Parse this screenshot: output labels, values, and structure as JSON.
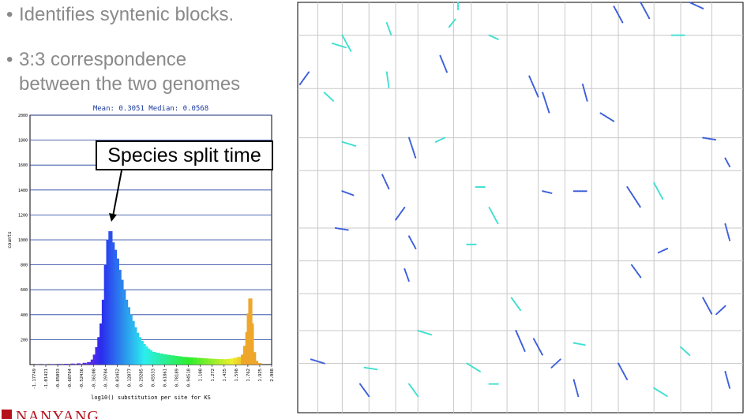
{
  "bullets": [
    {
      "text": "Identifies syntenic blocks."
    },
    {
      "text": "3:3 correspondence\nbetween the two genomes"
    }
  ],
  "callout": {
    "text": "Species split time"
  },
  "logo": {
    "text": "NANYANG"
  },
  "chart_data": [
    {
      "type": "bar",
      "title": "Mean: 0.3051 Median: 0.0568",
      "xlabel": "log10() substitution per site for KS",
      "ylabel": "counts",
      "ylim": [
        0,
        2000
      ],
      "y_ticks": [
        200,
        400,
        600,
        800,
        1000,
        1200,
        1400,
        1600,
        1800,
        2000
      ],
      "x_tick_labels": [
        "-1.17749",
        "-1.01421",
        "-0.85093",
        "-0.68764",
        "-0.52436",
        "-0.36108",
        "-0.19784",
        "-0.03452",
        "0.12877",
        "0.29205",
        "0.45533",
        "0.61861",
        "0.78189",
        "0.94518",
        "1.108",
        "1.272",
        "1.435",
        "1.598",
        "1.762",
        "1.925",
        "2.088"
      ],
      "xlim": [
        -1.17749,
        2.088
      ],
      "bins": [
        {
          "x": -1.08,
          "count": 2
        },
        {
          "x": -0.97,
          "count": 3
        },
        {
          "x": -0.87,
          "count": 4
        },
        {
          "x": -0.78,
          "count": 5
        },
        {
          "x": -0.69,
          "count": 6
        },
        {
          "x": -0.6,
          "count": 8
        },
        {
          "x": -0.52,
          "count": 10
        },
        {
          "x": -0.44,
          "count": 14
        },
        {
          "x": -0.38,
          "count": 20
        },
        {
          "x": -0.33,
          "count": 40
        },
        {
          "x": -0.3,
          "count": 80
        },
        {
          "x": -0.27,
          "count": 140
        },
        {
          "x": -0.24,
          "count": 220
        },
        {
          "x": -0.21,
          "count": 330
        },
        {
          "x": -0.18,
          "count": 520
        },
        {
          "x": -0.15,
          "count": 800
        },
        {
          "x": -0.12,
          "count": 1000
        },
        {
          "x": -0.09,
          "count": 1070
        },
        {
          "x": -0.06,
          "count": 980
        },
        {
          "x": -0.03,
          "count": 920
        },
        {
          "x": 0.0,
          "count": 850
        },
        {
          "x": 0.03,
          "count": 760
        },
        {
          "x": 0.06,
          "count": 680
        },
        {
          "x": 0.09,
          "count": 600
        },
        {
          "x": 0.12,
          "count": 520
        },
        {
          "x": 0.15,
          "count": 460
        },
        {
          "x": 0.18,
          "count": 400
        },
        {
          "x": 0.21,
          "count": 350
        },
        {
          "x": 0.24,
          "count": 300
        },
        {
          "x": 0.27,
          "count": 255
        },
        {
          "x": 0.3,
          "count": 220
        },
        {
          "x": 0.33,
          "count": 190
        },
        {
          "x": 0.36,
          "count": 165
        },
        {
          "x": 0.39,
          "count": 145
        },
        {
          "x": 0.42,
          "count": 128
        },
        {
          "x": 0.45,
          "count": 115
        },
        {
          "x": 0.5,
          "count": 102
        },
        {
          "x": 0.55,
          "count": 95
        },
        {
          "x": 0.6,
          "count": 88
        },
        {
          "x": 0.65,
          "count": 82
        },
        {
          "x": 0.7,
          "count": 78
        },
        {
          "x": 0.75,
          "count": 74
        },
        {
          "x": 0.8,
          "count": 70
        },
        {
          "x": 0.85,
          "count": 66
        },
        {
          "x": 0.9,
          "count": 62
        },
        {
          "x": 0.95,
          "count": 60
        },
        {
          "x": 1.0,
          "count": 58
        },
        {
          "x": 1.05,
          "count": 56
        },
        {
          "x": 1.1,
          "count": 54
        },
        {
          "x": 1.15,
          "count": 52
        },
        {
          "x": 1.2,
          "count": 50
        },
        {
          "x": 1.25,
          "count": 48
        },
        {
          "x": 1.3,
          "count": 46
        },
        {
          "x": 1.35,
          "count": 45
        },
        {
          "x": 1.4,
          "count": 44
        },
        {
          "x": 1.45,
          "count": 43
        },
        {
          "x": 1.5,
          "count": 45
        },
        {
          "x": 1.55,
          "count": 48
        },
        {
          "x": 1.6,
          "count": 55
        },
        {
          "x": 1.65,
          "count": 62
        },
        {
          "x": 1.7,
          "count": 80
        },
        {
          "x": 1.73,
          "count": 150
        },
        {
          "x": 1.76,
          "count": 260
        },
        {
          "x": 1.78,
          "count": 410
        },
        {
          "x": 1.8,
          "count": 530
        },
        {
          "x": 1.82,
          "count": 330
        },
        {
          "x": 1.85,
          "count": 100
        },
        {
          "x": 1.88,
          "count": 30
        },
        {
          "x": 1.93,
          "count": 12
        }
      ]
    },
    {
      "type": "scatter",
      "title": "",
      "grid": true,
      "segments": [
        {
          "x": 0.078,
          "y": 0.1,
          "dx": 0.03,
          "dy": 0.01,
          "color": "#40e0d0"
        },
        {
          "x": 0.1,
          "y": 0.08,
          "dx": 0.02,
          "dy": 0.04,
          "color": "#40e0d0"
        },
        {
          "x": 0.005,
          "y": 0.2,
          "dx": 0.02,
          "dy": -0.03,
          "color": "#3d5fd9"
        },
        {
          "x": 0.06,
          "y": 0.22,
          "dx": 0.02,
          "dy": 0.02,
          "color": "#40e0d0"
        },
        {
          "x": 0.2,
          "y": 0.05,
          "dx": 0.01,
          "dy": 0.03,
          "color": "#40e0d0"
        },
        {
          "x": 0.34,
          "y": 0.06,
          "dx": 0.015,
          "dy": -0.02,
          "color": "#40e0d0"
        },
        {
          "x": 0.36,
          "y": 0.0,
          "dx": 0.0,
          "dy": 0.02,
          "color": "#40e0d0"
        },
        {
          "x": 0.32,
          "y": 0.13,
          "dx": 0.015,
          "dy": 0.04,
          "color": "#3d5fd9"
        },
        {
          "x": 0.2,
          "y": 0.17,
          "dx": 0.005,
          "dy": 0.04,
          "color": "#40e0d0"
        },
        {
          "x": 0.43,
          "y": 0.08,
          "dx": 0.02,
          "dy": 0.01,
          "color": "#40e0d0"
        },
        {
          "x": 0.71,
          "y": 0.01,
          "dx": 0.02,
          "dy": 0.04,
          "color": "#3d5fd9"
        },
        {
          "x": 0.77,
          "y": 0.0,
          "dx": 0.02,
          "dy": 0.04,
          "color": "#3d5fd9"
        },
        {
          "x": 0.88,
          "y": 0.0,
          "dx": 0.03,
          "dy": 0.015,
          "color": "#3d5fd9"
        },
        {
          "x": 0.84,
          "y": 0.08,
          "dx": 0.03,
          "dy": 0.0,
          "color": "#40e0d0"
        },
        {
          "x": 0.52,
          "y": 0.18,
          "dx": 0.02,
          "dy": 0.05,
          "color": "#3d5fd9"
        },
        {
          "x": 0.55,
          "y": 0.22,
          "dx": 0.015,
          "dy": 0.05,
          "color": "#3d5fd9"
        },
        {
          "x": 0.64,
          "y": 0.2,
          "dx": 0.01,
          "dy": 0.04,
          "color": "#3d5fd9"
        },
        {
          "x": 0.68,
          "y": 0.27,
          "dx": 0.03,
          "dy": 0.02,
          "color": "#3d5fd9"
        },
        {
          "x": 0.25,
          "y": 0.33,
          "dx": 0.015,
          "dy": 0.05,
          "color": "#3d5fd9"
        },
        {
          "x": 0.1,
          "y": 0.34,
          "dx": 0.03,
          "dy": 0.01,
          "color": "#40e0d0"
        },
        {
          "x": 0.31,
          "y": 0.34,
          "dx": 0.02,
          "dy": -0.01,
          "color": "#40e0d0"
        },
        {
          "x": 0.91,
          "y": 0.33,
          "dx": 0.03,
          "dy": 0.005,
          "color": "#3d5fd9"
        },
        {
          "x": 0.96,
          "y": 0.38,
          "dx": 0.01,
          "dy": 0.02,
          "color": "#3d5fd9"
        },
        {
          "x": 0.19,
          "y": 0.42,
          "dx": 0.015,
          "dy": 0.035,
          "color": "#3d5fd9"
        },
        {
          "x": 0.1,
          "y": 0.46,
          "dx": 0.025,
          "dy": 0.01,
          "color": "#3d5fd9"
        },
        {
          "x": 0.22,
          "y": 0.53,
          "dx": 0.02,
          "dy": -0.03,
          "color": "#3d5fd9"
        },
        {
          "x": 0.4,
          "y": 0.45,
          "dx": 0.02,
          "dy": 0.0,
          "color": "#40e0d0"
        },
        {
          "x": 0.43,
          "y": 0.5,
          "dx": 0.02,
          "dy": 0.04,
          "color": "#40e0d0"
        },
        {
          "x": 0.55,
          "y": 0.46,
          "dx": 0.02,
          "dy": 0.005,
          "color": "#3d5fd9"
        },
        {
          "x": 0.62,
          "y": 0.46,
          "dx": 0.03,
          "dy": 0.0,
          "color": "#3d5fd9"
        },
        {
          "x": 0.74,
          "y": 0.45,
          "dx": 0.03,
          "dy": 0.05,
          "color": "#3d5fd9"
        },
        {
          "x": 0.8,
          "y": 0.44,
          "dx": 0.02,
          "dy": 0.04,
          "color": "#40e0d0"
        },
        {
          "x": 0.96,
          "y": 0.54,
          "dx": 0.01,
          "dy": 0.04,
          "color": "#3d5fd9"
        },
        {
          "x": 0.085,
          "y": 0.55,
          "dx": 0.03,
          "dy": 0.005,
          "color": "#3d5fd9"
        },
        {
          "x": 0.25,
          "y": 0.57,
          "dx": 0.015,
          "dy": 0.03,
          "color": "#3d5fd9"
        },
        {
          "x": 0.38,
          "y": 0.59,
          "dx": 0.02,
          "dy": 0.0,
          "color": "#40e0d0"
        },
        {
          "x": 0.81,
          "y": 0.61,
          "dx": 0.02,
          "dy": -0.01,
          "color": "#3d5fd9"
        },
        {
          "x": 0.75,
          "y": 0.64,
          "dx": 0.02,
          "dy": 0.03,
          "color": "#3d5fd9"
        },
        {
          "x": 0.24,
          "y": 0.65,
          "dx": 0.01,
          "dy": 0.03,
          "color": "#3d5fd9"
        },
        {
          "x": 0.48,
          "y": 0.72,
          "dx": 0.02,
          "dy": 0.03,
          "color": "#40e0d0"
        },
        {
          "x": 0.91,
          "y": 0.72,
          "dx": 0.02,
          "dy": 0.04,
          "color": "#3d5fd9"
        },
        {
          "x": 0.94,
          "y": 0.76,
          "dx": 0.02,
          "dy": -0.02,
          "color": "#3d5fd9"
        },
        {
          "x": 0.27,
          "y": 0.8,
          "dx": 0.03,
          "dy": 0.01,
          "color": "#40e0d0"
        },
        {
          "x": 0.49,
          "y": 0.8,
          "dx": 0.02,
          "dy": 0.05,
          "color": "#3d5fd9"
        },
        {
          "x": 0.53,
          "y": 0.82,
          "dx": 0.02,
          "dy": 0.04,
          "color": "#3d5fd9"
        },
        {
          "x": 0.62,
          "y": 0.83,
          "dx": 0.025,
          "dy": 0.005,
          "color": "#40e0d0"
        },
        {
          "x": 0.86,
          "y": 0.84,
          "dx": 0.02,
          "dy": 0.02,
          "color": "#40e0d0"
        },
        {
          "x": 0.03,
          "y": 0.87,
          "dx": 0.03,
          "dy": 0.01,
          "color": "#3d5fd9"
        },
        {
          "x": 0.15,
          "y": 0.89,
          "dx": 0.03,
          "dy": 0.005,
          "color": "#40e0d0"
        },
        {
          "x": 0.38,
          "y": 0.88,
          "dx": 0.03,
          "dy": 0.02,
          "color": "#40e0d0"
        },
        {
          "x": 0.57,
          "y": 0.89,
          "dx": 0.02,
          "dy": -0.02,
          "color": "#3d5fd9"
        },
        {
          "x": 0.72,
          "y": 0.88,
          "dx": 0.02,
          "dy": 0.04,
          "color": "#3d5fd9"
        },
        {
          "x": 0.14,
          "y": 0.93,
          "dx": 0.02,
          "dy": 0.03,
          "color": "#3d5fd9"
        },
        {
          "x": 0.25,
          "y": 0.93,
          "dx": 0.02,
          "dy": 0.03,
          "color": "#40e0d0"
        },
        {
          "x": 0.43,
          "y": 0.93,
          "dx": 0.02,
          "dy": 0.0,
          "color": "#40e0d0"
        },
        {
          "x": 0.62,
          "y": 0.92,
          "dx": 0.01,
          "dy": 0.04,
          "color": "#3d5fd9"
        },
        {
          "x": 0.8,
          "y": 0.94,
          "dx": 0.03,
          "dy": 0.02,
          "color": "#40e0d0"
        },
        {
          "x": 0.96,
          "y": 0.9,
          "dx": 0.01,
          "dy": 0.04,
          "color": "#3d5fd9"
        }
      ]
    }
  ]
}
